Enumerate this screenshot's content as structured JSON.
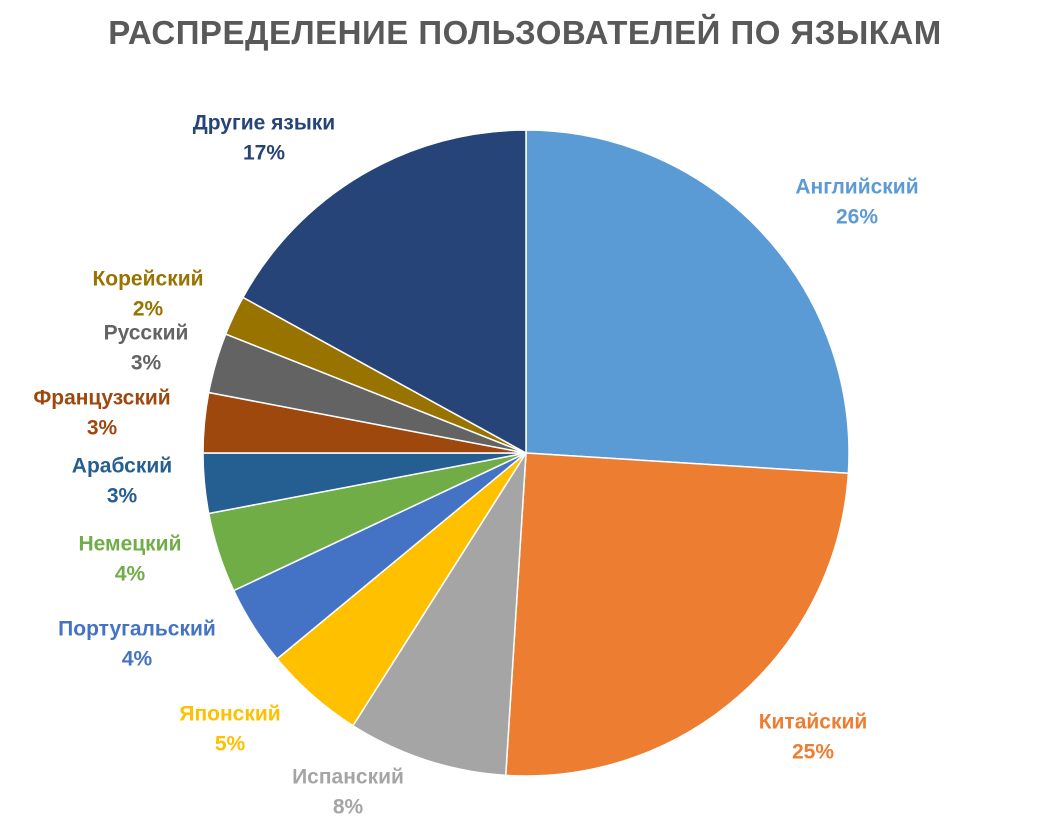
{
  "chart_data": {
    "type": "pie",
    "title": "РАСПРЕДЕЛЕНИЕ ПОЛЬЗОВАТЕЛЕЙ ПО ЯЗЫКАМ",
    "start_angle_deg": 0,
    "direction": "clockwise",
    "slices": [
      {
        "label": "Английский",
        "value": 26,
        "value_label": "26%",
        "color": "#5B9BD5"
      },
      {
        "label": "Китайский",
        "value": 25,
        "value_label": "25%",
        "color": "#ED7D31"
      },
      {
        "label": "Испанский",
        "value": 8,
        "value_label": "8%",
        "color": "#A5A5A5"
      },
      {
        "label": "Японский",
        "value": 5,
        "value_label": "5%",
        "color": "#FFC000"
      },
      {
        "label": "Португальский",
        "value": 4,
        "value_label": "4%",
        "color": "#4472C4"
      },
      {
        "label": "Немецкий",
        "value": 4,
        "value_label": "4%",
        "color": "#70AD47"
      },
      {
        "label": "Арабский",
        "value": 3,
        "value_label": "3%",
        "color": "#255E91"
      },
      {
        "label": "Французский",
        "value": 3,
        "value_label": "3%",
        "color": "#9E480E"
      },
      {
        "label": "Русский",
        "value": 3,
        "value_label": "3%",
        "color": "#636363"
      },
      {
        "label": "Корейский",
        "value": 2,
        "value_label": "2%",
        "color": "#997300"
      },
      {
        "label": "Другие языки",
        "value": 17,
        "value_label": "17%",
        "color": "#264478"
      }
    ],
    "label_colors": [
      "#5B9BD5",
      "#ED7D31",
      "#A5A5A5",
      "#FFC000",
      "#4472C4",
      "#70AD47",
      "#255E91",
      "#9E480E",
      "#636363",
      "#997300",
      "#264478"
    ]
  }
}
